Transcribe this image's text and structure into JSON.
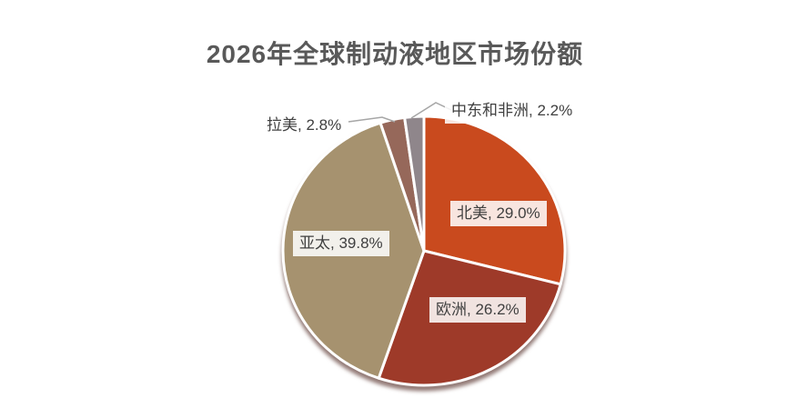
{
  "header": {
    "title": "2026年全球制动液地区市场份额"
  },
  "chart_data": {
    "type": "pie",
    "title": "2026年全球制动液地区市场份额",
    "value_format": "percent",
    "direction": "clockwise",
    "start_angle_deg": 0,
    "legend_position": "none",
    "total": 100,
    "slices": [
      {
        "id": "north-america",
        "name": "北美",
        "value": 29.0,
        "label": "北美, 29.0%",
        "color": "#C94A1E",
        "label_placement": "inside"
      },
      {
        "id": "europe",
        "name": "欧洲",
        "value": 26.2,
        "label": "欧洲, 26.2%",
        "color": "#9E3A29",
        "label_placement": "inside"
      },
      {
        "id": "asia-pacific",
        "name": "亚太",
        "value": 39.8,
        "label": "亚太, 39.8%",
        "color": "#A6926F",
        "label_placement": "inside"
      },
      {
        "id": "latin-america",
        "name": "拉美",
        "value": 2.8,
        "label": "拉美, 2.8%",
        "color": "#96685A",
        "label_placement": "outside"
      },
      {
        "id": "middle-east-africa",
        "name": "中东和非洲",
        "value": 2.2,
        "label": "中东和非洲, 2.2%",
        "color": "#8F868B",
        "label_placement": "outside"
      }
    ],
    "style": {
      "title_color": "#595959",
      "label_text_color": "#404040",
      "label_background": "rgba(255,255,255,0.86)",
      "slice_border_color": "#FFFFFF",
      "leader_line_color": "#A6A6A6"
    }
  }
}
